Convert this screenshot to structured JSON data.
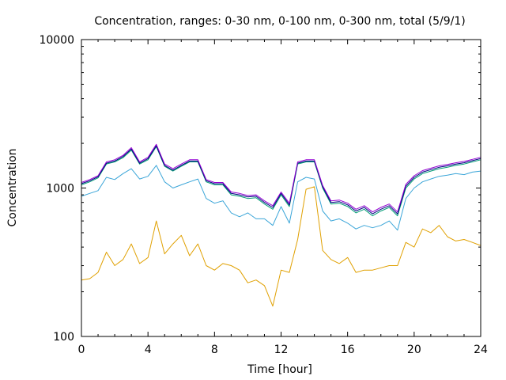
{
  "chart_data": {
    "type": "line",
    "title": "Concentration, ranges: 0-30 nm, 0-100 nm, 0-300 nm, total (5/9/1)",
    "xlabel": "Time [hour]",
    "ylabel": "Concentration",
    "xlim": [
      0,
      24
    ],
    "ylim": [
      100,
      10000
    ],
    "yscale": "log",
    "grid": false,
    "legend": "none",
    "x_ticks": [
      "0",
      "4",
      "8",
      "12",
      "16",
      "20",
      "24"
    ],
    "y_ticks": [
      "100",
      "1000",
      "10000"
    ],
    "x": [
      0,
      0.5,
      1,
      1.5,
      2,
      2.5,
      3,
      3.5,
      4,
      4.5,
      5,
      5.5,
      6,
      6.5,
      7,
      7.5,
      8,
      8.5,
      9,
      9.5,
      10,
      10.5,
      11,
      11.5,
      12,
      12.5,
      13,
      13.5,
      14,
      14.5,
      15,
      15.5,
      16,
      16.5,
      17,
      17.5,
      18,
      18.5,
      19,
      19.5,
      20,
      20.5,
      21,
      21.5,
      22,
      22.5,
      23,
      23.5,
      24
    ],
    "series": [
      {
        "color": "#e0a000",
        "values": [
          240,
          245,
          270,
          370,
          300,
          330,
          420,
          310,
          340,
          600,
          360,
          420,
          480,
          350,
          420,
          300,
          280,
          310,
          300,
          280,
          230,
          240,
          220,
          160,
          280,
          270,
          450,
          980,
          1020,
          380,
          330,
          310,
          340,
          270,
          280,
          280,
          290,
          300,
          300,
          430,
          400,
          530,
          500,
          560,
          470,
          440,
          450,
          430,
          410
        ]
      },
      {
        "color": "#3aa5d8",
        "values": [
          880,
          920,
          960,
          1180,
          1140,
          1250,
          1350,
          1150,
          1200,
          1420,
          1100,
          1000,
          1050,
          1100,
          1150,
          850,
          790,
          820,
          680,
          640,
          680,
          620,
          620,
          560,
          750,
          580,
          1100,
          1180,
          1150,
          700,
          600,
          620,
          580,
          530,
          560,
          540,
          560,
          600,
          520,
          850,
          1000,
          1100,
          1150,
          1200,
          1220,
          1250,
          1230,
          1280,
          1300
        ]
      },
      {
        "color": "#009e73",
        "values": [
          1050,
          1100,
          1170,
          1450,
          1500,
          1600,
          1800,
          1450,
          1550,
          1900,
          1400,
          1300,
          1400,
          1500,
          1500,
          1100,
          1050,
          1050,
          900,
          880,
          850,
          860,
          780,
          720,
          900,
          750,
          1450,
          1500,
          1500,
          1000,
          780,
          790,
          750,
          680,
          720,
          650,
          700,
          740,
          650,
          1000,
          1150,
          1250,
          1300,
          1350,
          1380,
          1420,
          1450,
          1500,
          1550
        ]
      },
      {
        "color": "#000080",
        "values": [
          1070,
          1120,
          1190,
          1470,
          1520,
          1630,
          1830,
          1470,
          1580,
          1930,
          1420,
          1320,
          1420,
          1520,
          1520,
          1120,
          1070,
          1070,
          920,
          900,
          870,
          880,
          800,
          740,
          920,
          770,
          1470,
          1520,
          1520,
          1020,
          800,
          810,
          770,
          700,
          740,
          670,
          720,
          760,
          670,
          1030,
          1180,
          1280,
          1330,
          1380,
          1410,
          1450,
          1480,
          1530,
          1580
        ]
      },
      {
        "color": "#9400d3",
        "values": [
          1090,
          1140,
          1210,
          1500,
          1550,
          1660,
          1870,
          1500,
          1610,
          1970,
          1450,
          1350,
          1450,
          1550,
          1550,
          1140,
          1090,
          1090,
          940,
          920,
          890,
          900,
          820,
          760,
          940,
          790,
          1500,
          1550,
          1550,
          1040,
          820,
          830,
          790,
          720,
          760,
          690,
          740,
          780,
          690,
          1060,
          1210,
          1310,
          1360,
          1410,
          1440,
          1480,
          1510,
          1560,
          1610
        ]
      }
    ]
  }
}
